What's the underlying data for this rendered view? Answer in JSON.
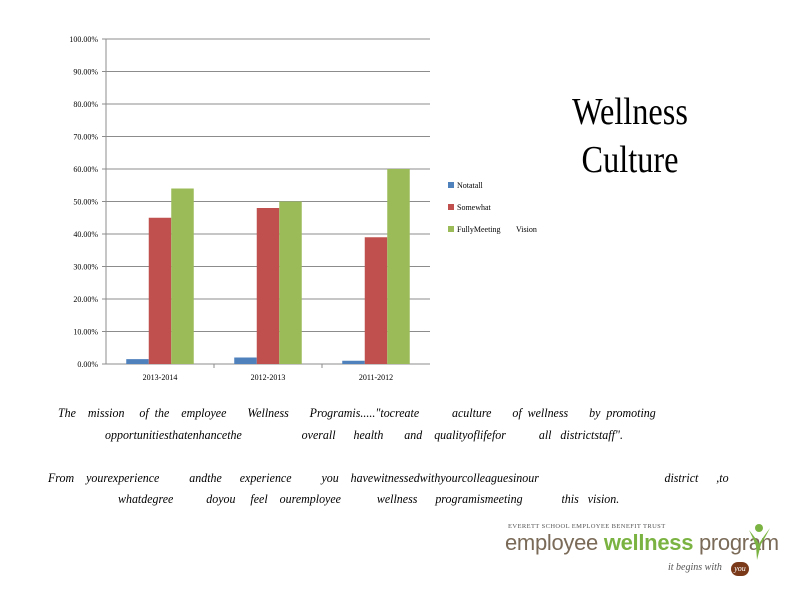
{
  "title_lines": [
    "Wellness",
    "Culture"
  ],
  "paragraph1": {
    "line1": "The    mission     of  the    employee       Wellness       Programis.....\"tocreate           aculture       of  wellness       by  promoting",
    "line2": "opportunitiesthatenhancethe                    overall      health       and    qualityoflifefor           all   districtstaff\"."
  },
  "paragraph2": {
    "line1": "From    yourexperience          andthe      experience          you    havewitnessedwithyourcolleaguesinour                                          district      ,to",
    "line2": "whatdegree           doyou     feel    ouremployee            wellness      programismeeting             this   vision."
  },
  "logo": {
    "top_text": "EVERETT SCHOOL EMPLOYEE BENEFIT TRUST",
    "main_text_1": "employee ",
    "main_text_2": "wellness",
    "main_text_3": " program",
    "tagline": "it begins with",
    "tagline_you": "you"
  },
  "chart_data": {
    "type": "bar",
    "categories": [
      "2013-2014",
      "2012-2013",
      "2011-2012"
    ],
    "series": [
      {
        "name": "Notatall",
        "color": "#4f81bd",
        "values": [
          1.5,
          2.0,
          1.0
        ]
      },
      {
        "name": "Somewhat",
        "color": "#c0504d",
        "values": [
          45.0,
          48.0,
          39.0
        ]
      },
      {
        "name": "FullyMeeting",
        "color": "#9bbb59",
        "values": [
          54.0,
          50.0,
          60.0
        ]
      }
    ],
    "legend_extra": "Vision",
    "ylim": [
      0,
      100
    ],
    "yticks": [
      "0.00%",
      "10.00%",
      "20.00%",
      "30.00%",
      "40.00%",
      "50.00%",
      "60.00%",
      "70.00%",
      "80.00%",
      "90.00%",
      "100.00%"
    ],
    "grid": true,
    "legend_position": "right"
  }
}
